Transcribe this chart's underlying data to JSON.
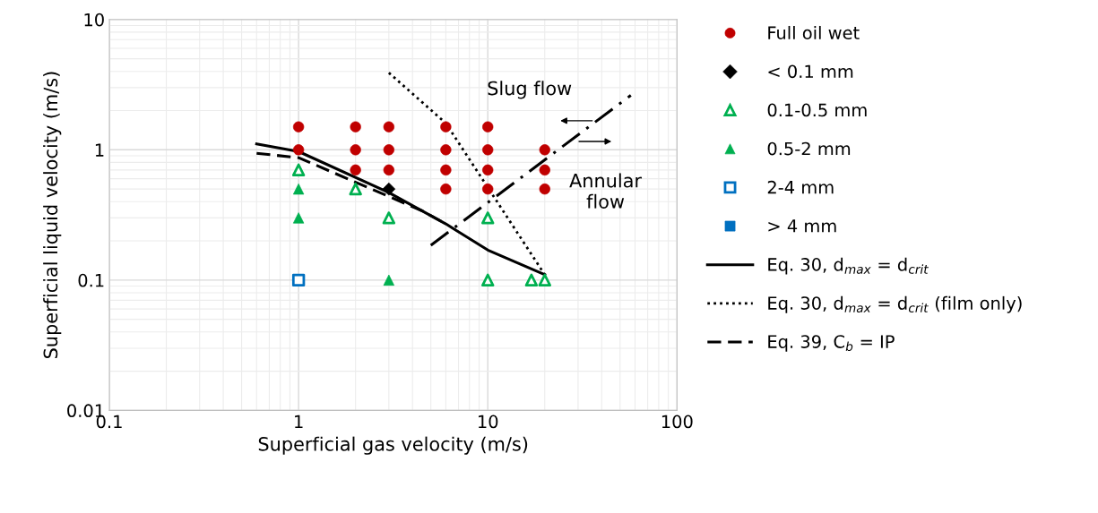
{
  "chart_data": {
    "type": "scatter",
    "xlabel": "Superficial gas velocity (m/s)",
    "ylabel": "Superficial liquid velocity (m/s)",
    "log": "xy",
    "xlim": [
      0.1,
      100
    ],
    "ylim": [
      0.01,
      10
    ],
    "xticks": [
      0.1,
      1,
      10,
      100
    ],
    "yticks": [
      0.01,
      0.1,
      1,
      10
    ],
    "grid": true,
    "legend": "right",
    "annotations": [
      "Slug flow",
      "Annular\nflow"
    ],
    "series": [
      {
        "name": "Full oil wet",
        "marker": "circle",
        "color": "#c00000",
        "x": [
          1,
          1,
          2,
          2,
          2,
          3,
          3,
          3,
          6,
          6,
          6,
          6,
          10,
          10,
          10,
          10,
          20,
          20,
          20
        ],
        "values": [
          1.5,
          1,
          1.5,
          1,
          0.7,
          1.5,
          1,
          0.7,
          1.5,
          1,
          0.7,
          0.5,
          1.5,
          1,
          0.7,
          0.5,
          1,
          0.7,
          0.5
        ]
      },
      {
        "name": "< 0.1 mm",
        "marker": "diamond",
        "color": "#000000",
        "x": [
          3
        ],
        "values": [
          0.5
        ]
      },
      {
        "name": "0.1-0.5 mm",
        "marker": "triangle-open",
        "color": "#00b050",
        "x": [
          1,
          2,
          3,
          10,
          10,
          17,
          20
        ],
        "values": [
          0.7,
          0.5,
          0.3,
          0.3,
          0.1,
          0.1,
          0.1
        ]
      },
      {
        "name": "0.5-2 mm",
        "marker": "triangle",
        "color": "#00b050",
        "x": [
          1,
          1,
          3
        ],
        "values": [
          0.5,
          0.3,
          0.1
        ]
      },
      {
        "name": "2-4 mm",
        "marker": "square-open",
        "color": "#0070c0",
        "x": [
          1
        ],
        "values": [
          0.1
        ]
      },
      {
        "name": "> 4 mm",
        "marker": "square",
        "color": "#0070c0"
      },
      {
        "name": "Eq. 30, d$_{max}$ = d$_{crit}$",
        "type": "line",
        "line_style": "solid",
        "color": "#000000",
        "x": [
          0.6,
          1,
          3,
          6,
          10,
          20
        ],
        "values": [
          1.11,
          0.97,
          0.47,
          0.27,
          0.17,
          0.11
        ]
      },
      {
        "name": "Eq. 30, d$_{max}$ = d$_{crit}$ (film only)",
        "type": "line",
        "line_style": "dotted",
        "color": "#000000",
        "x": [
          3,
          6,
          20
        ],
        "values": [
          3.9,
          1.6,
          0.11
        ]
      },
      {
        "name": "Eq. 39, C$_{b}$ = IP",
        "type": "line",
        "line_style": "dashed",
        "color": "#000000",
        "x": [
          0.6,
          1,
          4.5,
          6
        ],
        "values": [
          0.94,
          0.87,
          0.34,
          0.27
        ]
      },
      {
        "type": "line",
        "line_style": "dashdot",
        "color": "#000000",
        "x": [
          5,
          57
        ],
        "values": [
          0.185,
          2.62
        ]
      }
    ]
  }
}
